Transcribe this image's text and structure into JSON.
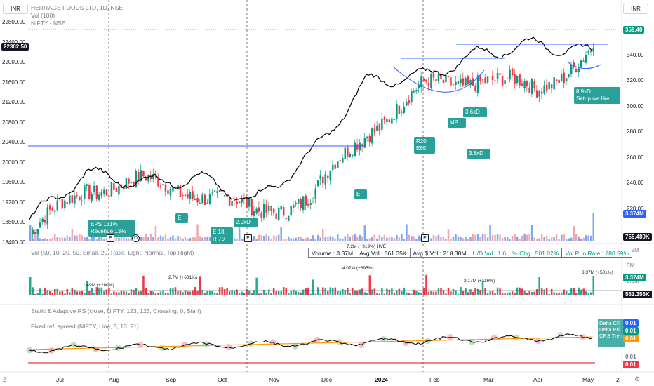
{
  "header": {
    "line1": "HERITAGE FOODS LTD, 1D, NSE",
    "line2": "Vol (100)",
    "line3": "NIFTY - NSE",
    "currency_left": "INR",
    "currency_right": "INR"
  },
  "left_axis": {
    "ticks": [
      "22800.00",
      "22400.00",
      "22000.00",
      "21600.00",
      "21200.00",
      "20800.00",
      "20400.00",
      "20000.00",
      "19600.00",
      "19200.00",
      "18800.00",
      "18400.00"
    ],
    "current_label": "22302.50"
  },
  "right_axis": {
    "ticks": [
      "360.00",
      "340.00",
      "320.00",
      "300.00",
      "280.00",
      "260.00",
      "240.00",
      "220.00"
    ],
    "price_label": "359.40",
    "vol_label": "3.374M",
    "vol_label2": "755.489K"
  },
  "volume_pane": {
    "title": "Vol (50, 10, 20, 50, Small, 20, Ratio, Light, Normal, Top Right)",
    "ticks": [
      "7.5M",
      "5M",
      "2.5M"
    ],
    "current_label": "3.374M",
    "avg_label": "561.356K",
    "stats": [
      {
        "text": "Volume : 3.37M"
      },
      {
        "text": "Avg Vol : 561.35K"
      },
      {
        "text": "Avg $ Vol : 218.38M"
      },
      {
        "text": "U/D Vol : 1.6"
      },
      {
        "text": "% Chg : 501.02%"
      },
      {
        "text": "Vol Run Rate : 780.59%"
      }
    ],
    "annotations": [
      {
        "text": "1.49M (+280%)"
      },
      {
        "text": "2.7M (+601%)"
      },
      {
        "text": "4.07M (+695%)"
      },
      {
        "text": "7.2M (+919%) HVE"
      },
      {
        "text": "2.17M (+116%)"
      },
      {
        "text": "3.37M (+501%)"
      }
    ]
  },
  "rs_pane": {
    "title1": "Static & Adaptive RS (close, NIFTY, 123, 123, Crossing, 0, Start)",
    "title2": "Fixed ref. spread (NIFTY, Line, 5, 13, 21)",
    "legend": [
      "Delta CR",
      "Delta Pri",
      "CRS Tren"
    ],
    "labels": [
      "0.01",
      "0.01",
      "0.01",
      "0.01",
      "0.01"
    ]
  },
  "time_axis": {
    "ticks": [
      "Jul",
      "Aug",
      "Sep",
      "Oct",
      "Nov",
      "Dec",
      "2024",
      "Feb",
      "Mar",
      "Apr",
      "May"
    ],
    "cut_label": "2"
  },
  "callouts": [
    {
      "text": "EPS 131%"
    },
    {
      "text": "Revenue 13%"
    },
    {
      "text": "E"
    },
    {
      "text": "E 18"
    },
    {
      "text": "R 70"
    },
    {
      "text": "2.9xD"
    },
    {
      "text": "E"
    },
    {
      "text": "R20"
    },
    {
      "text": "E65"
    },
    {
      "text": "MP"
    },
    {
      "text": "3.6xD"
    },
    {
      "text": "3.8xD"
    },
    {
      "text": "8.9xD"
    },
    {
      "text": "Setup we like"
    }
  ],
  "earnings_markers": [
    "E",
    "D",
    "E",
    "E"
  ],
  "colors": {
    "up": "#089981",
    "down": "#f23645",
    "nifty_line": "#000000",
    "callout": "#2aa198",
    "resistance": "#2962ff",
    "moving_avg": "#ff9800"
  },
  "chart_data": {
    "type": "candlestick",
    "series": [
      {
        "name": "HERITAGE FOODS LTD",
        "axis": "right",
        "approx_path_dates": [
          "Jul",
          "Aug",
          "Sep",
          "Oct",
          "Nov",
          "Dec",
          "2024",
          "Feb",
          "Mar",
          "Apr",
          "May"
        ],
        "approx_closes": [
          200,
          240,
          244,
          236,
          218,
          232,
          290,
          325,
          335,
          322,
          359.4
        ]
      },
      {
        "name": "NIFTY",
        "axis": "left",
        "approx_closes": [
          18700,
          19700,
          19500,
          19600,
          19100,
          20100,
          21700,
          21800,
          22300,
          22500,
          22302.5
        ]
      }
    ],
    "right_ylim": [
      195,
      375
    ],
    "left_ylim": [
      18350,
      22950
    ],
    "last_close": 359.4,
    "last_volume": "3.374M"
  }
}
